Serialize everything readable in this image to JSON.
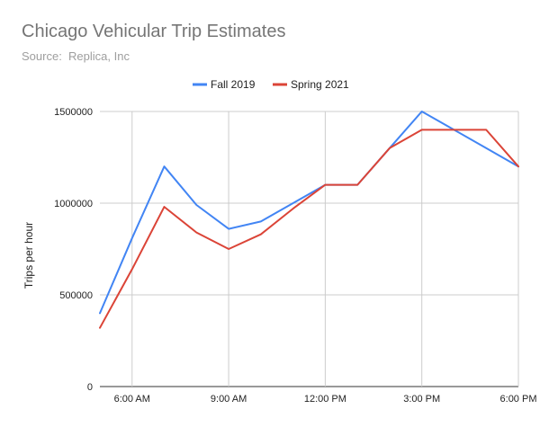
{
  "chart_data": {
    "type": "line",
    "title": "Chicago Vehicular Trip Estimates",
    "subtitle": "Source:  Replica, Inc",
    "xlabel": "",
    "ylabel": "Trips per hour",
    "x": [
      5,
      6,
      7,
      8,
      9,
      10,
      11,
      12,
      13,
      14,
      15,
      16,
      17,
      18
    ],
    "xlim": [
      5,
      18
    ],
    "ylim": [
      0,
      1500000
    ],
    "y_ticks": [
      0,
      500000,
      1000000,
      1500000
    ],
    "y_tick_labels": [
      "0",
      "500000",
      "1000000",
      "1500000"
    ],
    "x_ticks": [
      6,
      9,
      12,
      15,
      18
    ],
    "x_tick_labels": [
      "6:00 AM",
      "9:00 AM",
      "12:00 PM",
      "3:00 PM",
      "6:00 PM"
    ],
    "grid": true,
    "legend_position": "top",
    "series": [
      {
        "name": "Fall 2019",
        "color": "#4285f4",
        "values": [
          400000,
          810000,
          1200000,
          990000,
          860000,
          900000,
          1000000,
          1100000,
          1100000,
          1300000,
          1500000,
          1400000,
          1300000,
          1200000
        ]
      },
      {
        "name": "Spring 2021",
        "color": "#db4437",
        "values": [
          320000,
          640000,
          980000,
          840000,
          750000,
          830000,
          970000,
          1100000,
          1100000,
          1300000,
          1400000,
          1400000,
          1400000,
          1200000
        ]
      }
    ]
  }
}
